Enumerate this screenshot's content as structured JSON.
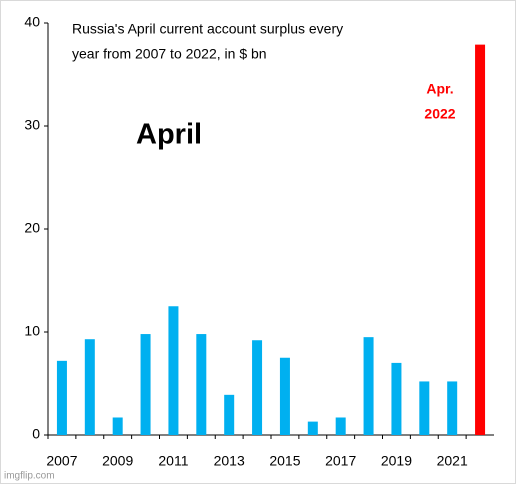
{
  "chart_data": {
    "type": "bar",
    "title": [
      "Russia's April current account surplus every",
      "year from 2007 to 2022, in $ bn"
    ],
    "subtitle": "April",
    "annotation": [
      "Apr.",
      "2022"
    ],
    "watermark": "imgflip.com",
    "categories": [
      "2007",
      null,
      "2009",
      null,
      "2011",
      null,
      "2013",
      null,
      "2015",
      null,
      "2017",
      null,
      "2019",
      null,
      "2021",
      null
    ],
    "values": [
      7.2,
      9.3,
      1.7,
      9.8,
      12.5,
      9.8,
      3.9,
      9.2,
      7.5,
      1.3,
      1.7,
      9.5,
      7.0,
      5.2,
      5.2,
      37.9
    ],
    "colors": [
      "#00b0f0",
      "#00b0f0",
      "#00b0f0",
      "#00b0f0",
      "#00b0f0",
      "#00b0f0",
      "#00b0f0",
      "#00b0f0",
      "#00b0f0",
      "#00b0f0",
      "#00b0f0",
      "#00b0f0",
      "#00b0f0",
      "#00b0f0",
      "#00b0f0",
      "#ff0000"
    ],
    "annotation_color": "#ff0000",
    "ylim": [
      0,
      40
    ],
    "yticks": [
      0,
      10,
      20,
      30,
      40
    ],
    "grid": false
  }
}
